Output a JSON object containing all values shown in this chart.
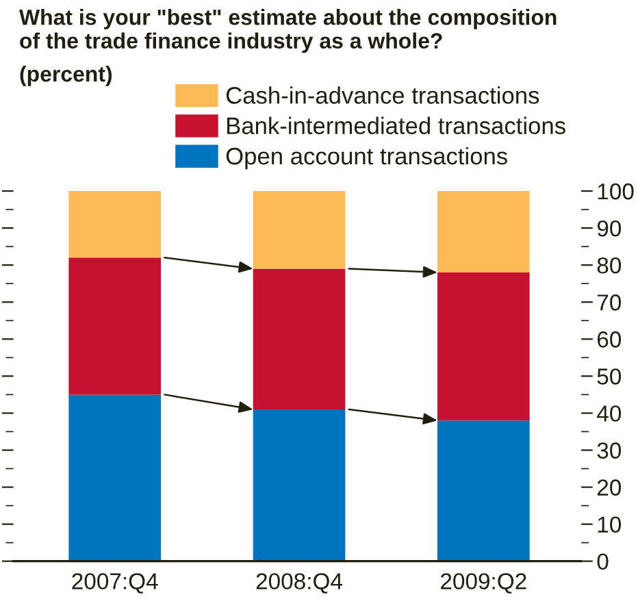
{
  "chart_data": {
    "type": "bar",
    "stacked": true,
    "title": "What is your \"best\" estimate about the composition\nof the trade finance industry as a whole?",
    "subtitle": "(percent)",
    "categories": [
      "2007:Q4",
      "2008:Q4",
      "2009:Q2"
    ],
    "series": [
      {
        "name": "Open account transactions",
        "color": "#0075bf",
        "values": [
          45,
          41,
          38
        ]
      },
      {
        "name": "Bank-intermediated transactions",
        "color": "#c41230",
        "values": [
          37,
          38,
          40
        ]
      },
      {
        "name": "Cash-in-advance transactions",
        "color": "#fdbb57",
        "values": [
          18,
          21,
          22
        ]
      }
    ],
    "ylim": [
      0,
      100
    ],
    "yticks": [
      0,
      10,
      20,
      30,
      40,
      50,
      60,
      70,
      80,
      90,
      100
    ],
    "grid": false,
    "legend": "top"
  }
}
